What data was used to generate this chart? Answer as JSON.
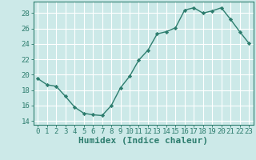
{
  "x": [
    0,
    1,
    2,
    3,
    4,
    5,
    6,
    7,
    8,
    9,
    10,
    11,
    12,
    13,
    14,
    15,
    16,
    17,
    18,
    19,
    20,
    21,
    22,
    23
  ],
  "y": [
    19.5,
    18.7,
    18.5,
    17.2,
    15.8,
    15.0,
    14.8,
    14.7,
    16.0,
    18.3,
    19.8,
    21.9,
    23.2,
    25.3,
    25.6,
    26.1,
    28.4,
    28.7,
    28.0,
    28.3,
    28.7,
    27.2,
    25.6,
    24.1
  ],
  "line_color": "#2d7d6e",
  "marker": "D",
  "marker_size": 2.2,
  "bg_color": "#cce9e8",
  "grid_color": "#ffffff",
  "text_color": "#2d7d6e",
  "xlabel": "Humidex (Indice chaleur)",
  "xlim": [
    -0.5,
    23.5
  ],
  "ylim": [
    13.5,
    29.5
  ],
  "yticks": [
    14,
    16,
    18,
    20,
    22,
    24,
    26,
    28
  ],
  "xtick_labels": [
    "0",
    "1",
    "2",
    "3",
    "4",
    "5",
    "6",
    "7",
    "8",
    "9",
    "10",
    "11",
    "12",
    "13",
    "14",
    "15",
    "16",
    "17",
    "18",
    "19",
    "20",
    "21",
    "22",
    "23"
  ],
  "tick_fontsize": 6.5,
  "xlabel_fontsize": 8
}
